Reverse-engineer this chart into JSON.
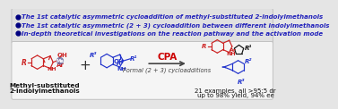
{
  "bg_color": "#e5e5e5",
  "top_bg": "#dcdcdc",
  "bottom_bg": "#f0f0f0",
  "bullet_dot_color": "#000080",
  "bullet_text_color": "#2222bb",
  "bullet_lines": [
    "The 1st catalytic asymmetric cycloaddition of methyl-substituted 2-indolylmethanols",
    "The 1st catalytic asymmetric (2 + 3) cycloaddition between different indolylmethanols",
    "In-depth theoretical investigations on the reaction pathway and the activation mode"
  ],
  "cpa_text": "CPA",
  "cpa_color": "#cc0000",
  "arrow_text": "Formal (2 + 3) cycloadditions",
  "arrow_color": "#444444",
  "result1": "21 examples, all >95:5 dr",
  "result2": "up to 98% yield, 94% ee",
  "result_color": "#111111",
  "red_color": "#cc2222",
  "blue_color": "#2233cc",
  "black_color": "#111111",
  "me_fill": "#7777aa",
  "label1": "Methyl-substituted",
  "label2": "2-indolylmethanols"
}
